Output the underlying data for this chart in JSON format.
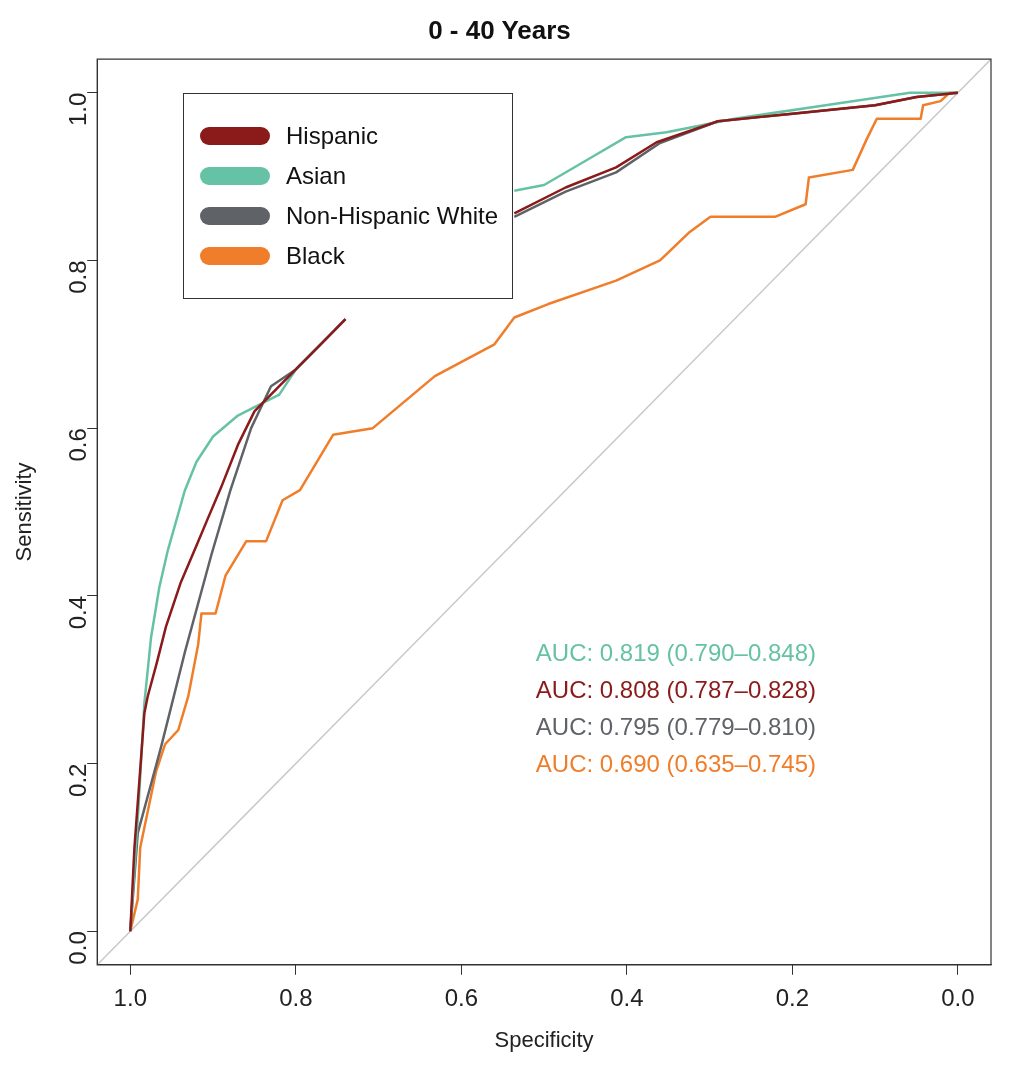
{
  "chart_data": {
    "type": "line",
    "title": "0 - 40 Years",
    "xlabel": "Specificity",
    "ylabel": "Sensitivity",
    "xlim": [
      1.04,
      -0.04
    ],
    "xticks": [
      {
        "value": 1,
        "label": "1.0"
      },
      {
        "value": 0.8,
        "label": "0.8"
      },
      {
        "value": 0.6,
        "label": "0.6"
      },
      {
        "value": 0.4,
        "label": "0.4"
      },
      {
        "value": 0.2,
        "label": "0.2"
      },
      {
        "value": 0,
        "label": "0.0"
      }
    ],
    "ylim": [
      -0.04,
      1.04
    ],
    "yticks": [
      {
        "value": 0,
        "label": "0.0"
      },
      {
        "value": 0.2,
        "label": "0.2"
      },
      {
        "value": 0.4,
        "label": "0.4"
      },
      {
        "value": 0.6,
        "label": "0.6"
      },
      {
        "value": 0.8,
        "label": "0.8"
      },
      {
        "value": 1,
        "label": "1.0"
      }
    ],
    "grid": false,
    "legend": "top left",
    "marker": "none",
    "line_style": "solid",
    "series": [
      {
        "name": "Hispanic",
        "color": "#8b1a1a",
        "x": [
          1,
          0.995,
          0.983,
          0.979,
          0.968,
          0.957,
          0.939,
          0.92,
          0.906,
          0.89,
          0.87,
          0.85,
          0.82,
          0.8,
          0.77,
          0.74,
          0.65,
          0.536,
          0.474,
          0.413,
          0.364,
          0.29,
          0.2,
          0.1,
          0.05,
          0
        ],
        "values": [
          0,
          0.1,
          0.26,
          0.28,
          0.32,
          0.363,
          0.416,
          0.46,
          0.493,
          0.53,
          0.58,
          0.62,
          0.65,
          0.67,
          0.7,
          0.73,
          null,
          0.856,
          0.887,
          0.911,
          0.941,
          0.966,
          0.975,
          0.985,
          0.995,
          1
        ]
      },
      {
        "name": "Asian",
        "color": "#66c2a5",
        "x": [
          1,
          0.99,
          0.983,
          0.975,
          0.965,
          0.955,
          0.934,
          0.92,
          0.9,
          0.87,
          0.85,
          0.82,
          0.8,
          0.77,
          0.75,
          0.65,
          0.536,
          0.5,
          0.441,
          0.401,
          0.352,
          0.27,
          0.168,
          0.058,
          0
        ],
        "values": [
          0,
          0.15,
          0.272,
          0.35,
          0.41,
          0.453,
          0.526,
          0.56,
          0.59,
          0.615,
          0.625,
          0.64,
          0.67,
          0.7,
          null,
          null,
          0.883,
          0.89,
          0.924,
          0.947,
          0.953,
          0.969,
          0.984,
          1,
          1
        ]
      },
      {
        "name": "Non-Hispanic White",
        "color": "#5f6368",
        "x": [
          1,
          0.991,
          0.963,
          0.934,
          0.902,
          0.879,
          0.854,
          0.83,
          0.8,
          0.77,
          0.74,
          0.65,
          0.536,
          0.474,
          0.413,
          0.36,
          0.29,
          0.2,
          0.1,
          0.05,
          0
        ],
        "values": [
          0,
          0.117,
          0.219,
          0.333,
          0.449,
          0.526,
          0.6,
          0.65,
          0.67,
          0.7,
          0.73,
          null,
          0.852,
          0.882,
          0.905,
          0.94,
          0.966,
          0.975,
          0.985,
          0.995,
          1
        ]
      },
      {
        "name": "Black",
        "color": "#f07d2a",
        "x": [
          1,
          0.991,
          0.988,
          0.969,
          0.958,
          0.942,
          0.93,
          0.918,
          0.914,
          0.897,
          0.885,
          0.86,
          0.836,
          0.816,
          0.795,
          0.755,
          0.707,
          0.632,
          0.56,
          0.536,
          0.495,
          0.413,
          0.36,
          0.324,
          0.299,
          0.221,
          0.184,
          0.18,
          0.127,
          0.11,
          0.098,
          0.045,
          0.042,
          0.021,
          0.01,
          0
        ],
        "values": [
          0,
          0.038,
          0.1,
          0.19,
          0.223,
          0.24,
          0.28,
          0.342,
          0.379,
          0.379,
          0.424,
          0.465,
          0.465,
          0.514,
          0.526,
          0.592,
          0.6,
          0.662,
          0.7,
          0.732,
          0.748,
          0.776,
          0.8,
          0.834,
          0.852,
          0.852,
          0.867,
          0.899,
          0.908,
          0.945,
          0.969,
          0.969,
          0.985,
          0.99,
          1,
          1
        ]
      },
      {
        "type": "line",
        "color": "#c8c8c8",
        "x": [
          1.04,
          -0.04
        ],
        "values": [
          -0.04,
          1.04
        ]
      }
    ],
    "annotations": [
      "AUC: 0.819 (0.790–0.848)",
      "AUC: 0.808 (0.787–0.828)",
      "AUC: 0.795 (0.779–0.810)",
      "AUC: 0.690 (0.635–0.745)"
    ]
  }
}
